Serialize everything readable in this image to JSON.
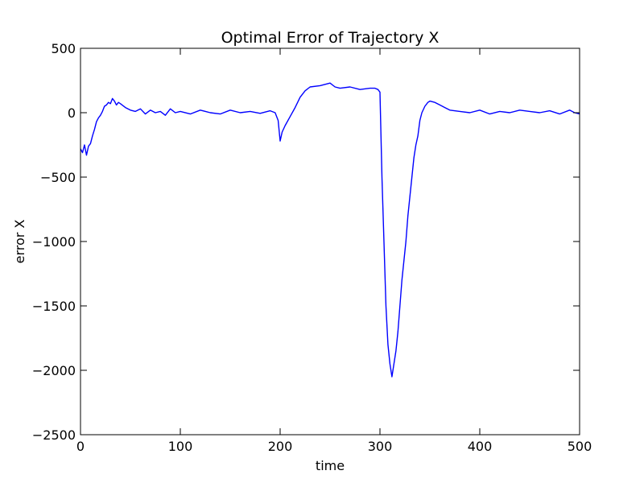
{
  "chart_data": {
    "type": "line",
    "title": "Optimal Error of Trajectory X",
    "xlabel": "time",
    "ylabel": "error X",
    "xlim": [
      0,
      500
    ],
    "ylim": [
      -2500,
      500
    ],
    "x_ticks": [
      0,
      100,
      200,
      300,
      400,
      500
    ],
    "y_ticks": [
      500,
      0,
      -500,
      -1000,
      -1500,
      -2000,
      -2500
    ],
    "x_tick_labels": [
      "0",
      "100",
      "200",
      "300",
      "400",
      "500"
    ],
    "y_tick_labels": [
      "500",
      "0",
      "−500",
      "−1000",
      "−1500",
      "−2000",
      "−2500"
    ],
    "grid": false,
    "series": [
      {
        "color": "#0000ff",
        "x": [
          0,
          2,
          4,
          6,
          8,
          10,
          12,
          14,
          16,
          18,
          20,
          22,
          24,
          26,
          28,
          30,
          32,
          34,
          36,
          38,
          40,
          45,
          50,
          55,
          60,
          65,
          70,
          75,
          80,
          85,
          90,
          95,
          100,
          110,
          120,
          130,
          140,
          150,
          160,
          170,
          180,
          190,
          195,
          198,
          200,
          202,
          205,
          210,
          215,
          220,
          225,
          230,
          240,
          250,
          255,
          260,
          270,
          280,
          290,
          295,
          298,
          300,
          302,
          304,
          306,
          308,
          310,
          312,
          314,
          316,
          318,
          320,
          322,
          324,
          326,
          328,
          330,
          332,
          334,
          336,
          338,
          340,
          342,
          345,
          348,
          350,
          355,
          360,
          365,
          370,
          380,
          390,
          400,
          410,
          420,
          430,
          440,
          450,
          460,
          470,
          480,
          490,
          495,
          500
        ],
        "y": [
          -280,
          -310,
          -250,
          -330,
          -260,
          -240,
          -180,
          -130,
          -70,
          -40,
          -20,
          10,
          50,
          60,
          80,
          70,
          110,
          90,
          60,
          80,
          70,
          40,
          20,
          10,
          30,
          -10,
          20,
          0,
          10,
          -20,
          30,
          0,
          10,
          -10,
          20,
          0,
          -10,
          20,
          0,
          10,
          -5,
          15,
          0,
          -60,
          -220,
          -150,
          -100,
          -30,
          40,
          120,
          170,
          200,
          210,
          230,
          200,
          190,
          200,
          180,
          190,
          190,
          180,
          160,
          -500,
          -1000,
          -1500,
          -1800,
          -1950,
          -2050,
          -1950,
          -1850,
          -1700,
          -1500,
          -1300,
          -1150,
          -1000,
          -800,
          -650,
          -500,
          -350,
          -250,
          -180,
          -60,
          0,
          50,
          80,
          90,
          80,
          60,
          40,
          20,
          10,
          0,
          20,
          -10,
          10,
          0,
          20,
          10,
          0,
          15,
          -10,
          20,
          0,
          -10
        ]
      }
    ]
  }
}
